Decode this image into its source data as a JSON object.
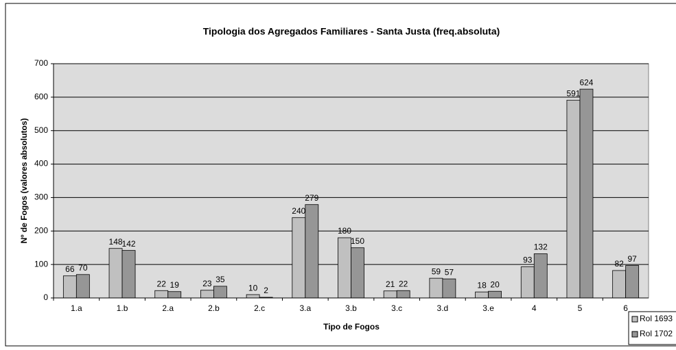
{
  "chart_data": {
    "type": "bar",
    "title": "Tipologia dos Agregados Familiares - Santa Justa (freq.absoluta)",
    "x_label": "Tipo de Fogos",
    "y_label": "Nº de Fogos (valores absolutos)",
    "categories": [
      "1.a",
      "1.b",
      "2.a",
      "2.b",
      "2.c",
      "3.a",
      "3.b",
      "3.c",
      "3.d",
      "3.e",
      "4",
      "5",
      "6"
    ],
    "series": [
      {
        "name": "Rol 1693",
        "color": "#c0c0c0",
        "values": [
          66,
          148,
          22,
          23,
          10,
          240,
          180,
          21,
          59,
          18,
          93,
          591,
          82
        ]
      },
      {
        "name": "Rol 1702",
        "color": "#969696",
        "values": [
          70,
          142,
          19,
          35,
          2,
          279,
          150,
          22,
          57,
          20,
          132,
          624,
          97
        ]
      }
    ],
    "ylim": [
      0,
      700
    ],
    "yticks": [
      0,
      100,
      200,
      300,
      400,
      500,
      600,
      700
    ],
    "grid": true
  }
}
